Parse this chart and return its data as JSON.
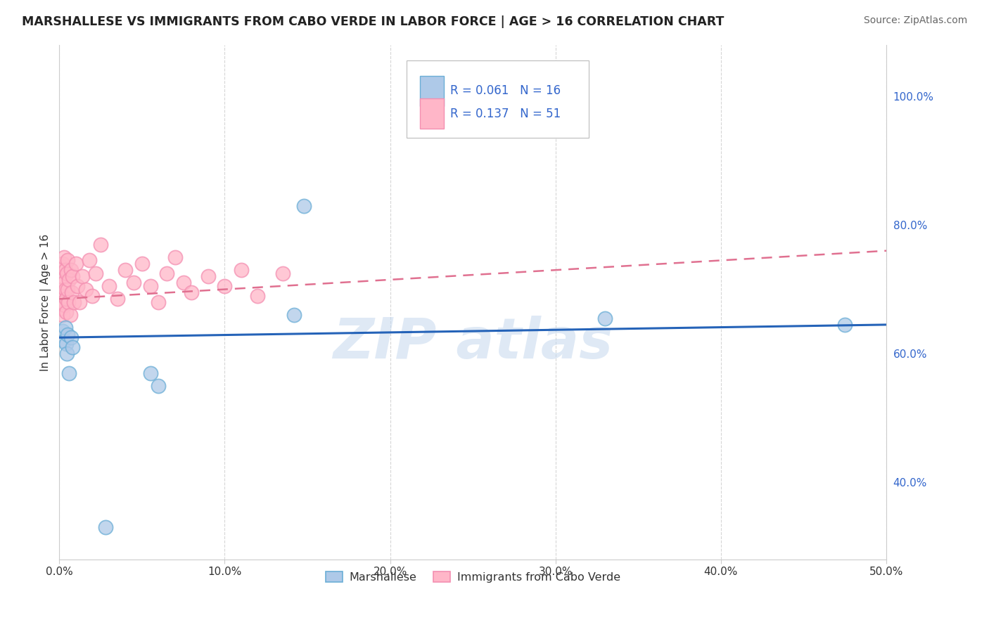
{
  "title": "MARSHALLESE VS IMMIGRANTS FROM CABO VERDE IN LABOR FORCE | AGE > 16 CORRELATION CHART",
  "source": "Source: ZipAtlas.com",
  "ylabel_label": "In Labor Force | Age > 16",
  "xlim": [
    0.0,
    50.0
  ],
  "ylim": [
    28.0,
    108.0
  ],
  "x_tick_vals": [
    0,
    10,
    20,
    30,
    40,
    50
  ],
  "x_tick_labels": [
    "0.0%",
    "10.0%",
    "20.0%",
    "30.0%",
    "40.0%",
    "50.0%"
  ],
  "y_tick_vals": [
    40,
    60,
    80,
    100
  ],
  "y_tick_labels": [
    "40.0%",
    "60.0%",
    "80.0%",
    "100.0%"
  ],
  "legend1_r": "0.061",
  "legend1_n": "16",
  "legend2_r": "0.137",
  "legend2_n": "51",
  "blue_face": "#aec9e8",
  "blue_edge": "#6baed6",
  "pink_face": "#ffb6c8",
  "pink_edge": "#f48fb1",
  "blue_line": "#2563b8",
  "pink_line": "#e07090",
  "grid_color": "#cccccc",
  "background": "#ffffff",
  "watermark": "ZIP atlas",
  "blue_x": [
    0.2,
    0.3,
    0.35,
    0.4,
    0.45,
    0.5,
    0.6,
    0.7,
    0.8,
    2.8,
    5.5,
    6.0,
    14.2,
    14.8,
    33.0,
    47.5
  ],
  "blue_y": [
    63.5,
    62.0,
    64.0,
    61.5,
    60.0,
    63.0,
    57.0,
    62.5,
    61.0,
    33.0,
    57.0,
    55.0,
    66.0,
    83.0,
    65.5,
    64.5
  ],
  "pink_x": [
    0.05,
    0.08,
    0.1,
    0.12,
    0.15,
    0.18,
    0.2,
    0.22,
    0.25,
    0.28,
    0.3,
    0.32,
    0.35,
    0.38,
    0.4,
    0.42,
    0.45,
    0.48,
    0.5,
    0.55,
    0.6,
    0.65,
    0.7,
    0.75,
    0.8,
    0.9,
    1.0,
    1.1,
    1.2,
    1.4,
    1.6,
    1.8,
    2.0,
    2.2,
    2.5,
    3.0,
    3.5,
    4.0,
    4.5,
    5.0,
    5.5,
    6.0,
    6.5,
    7.0,
    7.5,
    8.0,
    9.0,
    10.0,
    11.0,
    12.0,
    13.5
  ],
  "pink_y": [
    70.0,
    68.5,
    72.0,
    67.0,
    73.5,
    69.0,
    66.0,
    74.0,
    68.0,
    71.0,
    75.0,
    67.5,
    70.0,
    73.0,
    66.5,
    68.5,
    72.5,
    70.0,
    74.5,
    68.0,
    71.5,
    66.0,
    73.0,
    69.5,
    72.0,
    68.0,
    74.0,
    70.5,
    68.0,
    72.0,
    70.0,
    74.5,
    69.0,
    72.5,
    77.0,
    70.5,
    68.5,
    73.0,
    71.0,
    74.0,
    70.5,
    68.0,
    72.5,
    75.0,
    71.0,
    69.5,
    72.0,
    70.5,
    73.0,
    69.0,
    72.5
  ],
  "blue_trend_x0": 0.0,
  "blue_trend_x1": 50.0,
  "blue_trend_y0": 62.5,
  "blue_trend_y1": 64.5,
  "pink_trend_x0": 0.0,
  "pink_trend_x1": 50.0,
  "pink_trend_y0": 68.5,
  "pink_trend_y1": 76.0
}
